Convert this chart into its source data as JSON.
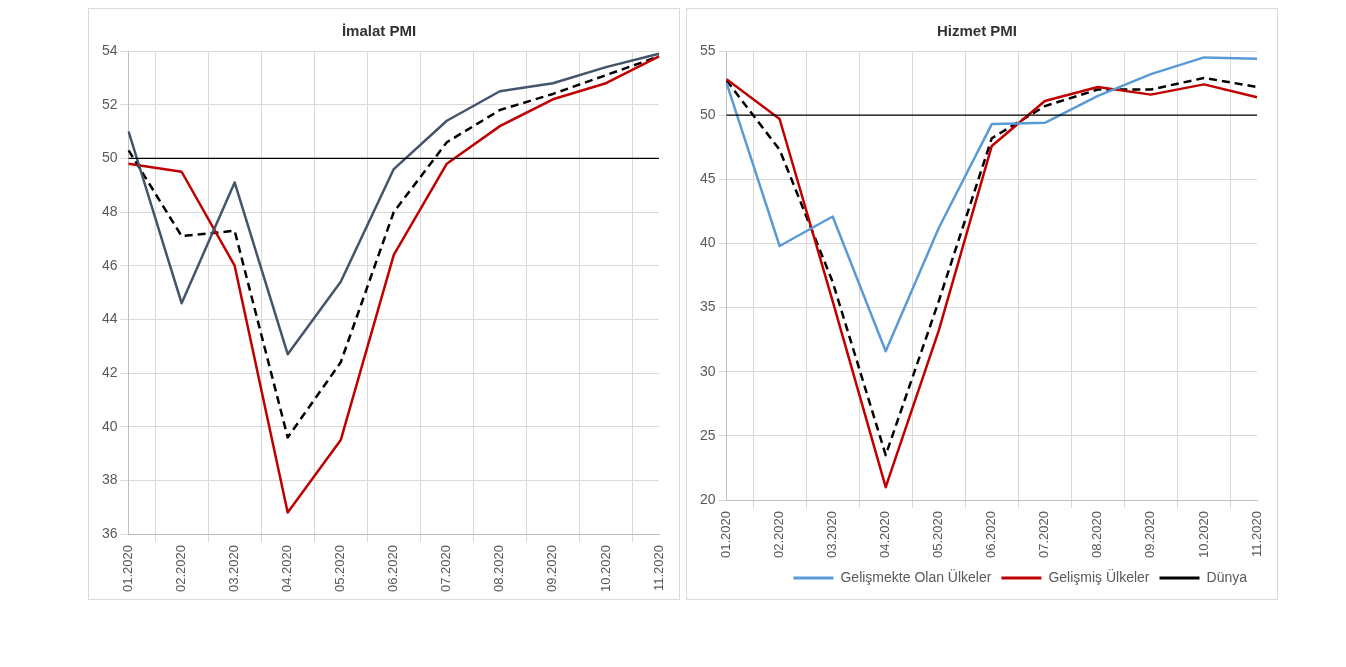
{
  "chart_data": [
    {
      "type": "line",
      "title": "İmalat PMI",
      "categories": [
        "01.2020",
        "02.2020",
        "03.2020",
        "04.2020",
        "05.2020",
        "06.2020",
        "07.2020",
        "08.2020",
        "09.2020",
        "10.2020",
        "11.2020"
      ],
      "series": [
        {
          "color": "#44546a",
          "line_style": "solid",
          "values": [
            51.0,
            44.6,
            49.1,
            42.7,
            45.4,
            49.6,
            51.4,
            52.5,
            52.8,
            53.4,
            53.9
          ]
        },
        {
          "color": "#c00000",
          "line_style": "solid",
          "values": [
            49.8,
            49.5,
            46.0,
            36.8,
            39.5,
            46.4,
            49.8,
            51.2,
            52.2,
            52.8,
            53.8
          ]
        },
        {
          "color": "#000000",
          "line_style": "dashed",
          "values": [
            50.3,
            47.1,
            47.3,
            39.6,
            42.4,
            48.0,
            50.6,
            51.8,
            52.4,
            53.1,
            53.8
          ]
        }
      ],
      "ylim": [
        36,
        54
      ],
      "yticks": [
        36,
        38,
        40,
        42,
        44,
        46,
        48,
        50,
        52,
        54
      ],
      "grid": true,
      "marker": "none",
      "legend": false,
      "ref_lines": [
        {
          "axis": "y",
          "value": 50,
          "color": "#000000"
        }
      ]
    },
    {
      "type": "line",
      "title": "Hizmet PMI",
      "categories": [
        "01.2020",
        "02.2020",
        "03.2020",
        "04.2020",
        "05.2020",
        "06.2020",
        "07.2020",
        "08.2020",
        "09.2020",
        "10.2020",
        "11.2020"
      ],
      "series": [
        {
          "name": "Gelişmekte Olan Ülkeler",
          "color": "#5b9bd5",
          "line_style": "solid",
          "values": [
            52.5,
            39.8,
            42.1,
            31.6,
            41.2,
            49.3,
            49.4,
            51.5,
            53.2,
            54.5,
            54.4
          ]
        },
        {
          "name": "Gelişmiş Ülkeler",
          "color": "#c00000",
          "line_style": "solid",
          "values": [
            52.8,
            49.7,
            35.5,
            21.0,
            33.2,
            47.6,
            51.1,
            52.2,
            51.6,
            52.4,
            51.4
          ]
        },
        {
          "name": "Dünya",
          "color": "#000000",
          "line_style": "dashed",
          "values": [
            52.7,
            47.3,
            37.0,
            23.5,
            35.5,
            48.2,
            50.7,
            52.0,
            52.0,
            52.9,
            52.2
          ]
        }
      ],
      "ylim": [
        20,
        55
      ],
      "yticks": [
        20,
        25,
        30,
        35,
        40,
        45,
        50,
        55
      ],
      "grid": true,
      "marker": "none",
      "legend": "bottom",
      "ref_lines": [
        {
          "axis": "y",
          "value": 50,
          "color": "#000000"
        }
      ]
    }
  ]
}
